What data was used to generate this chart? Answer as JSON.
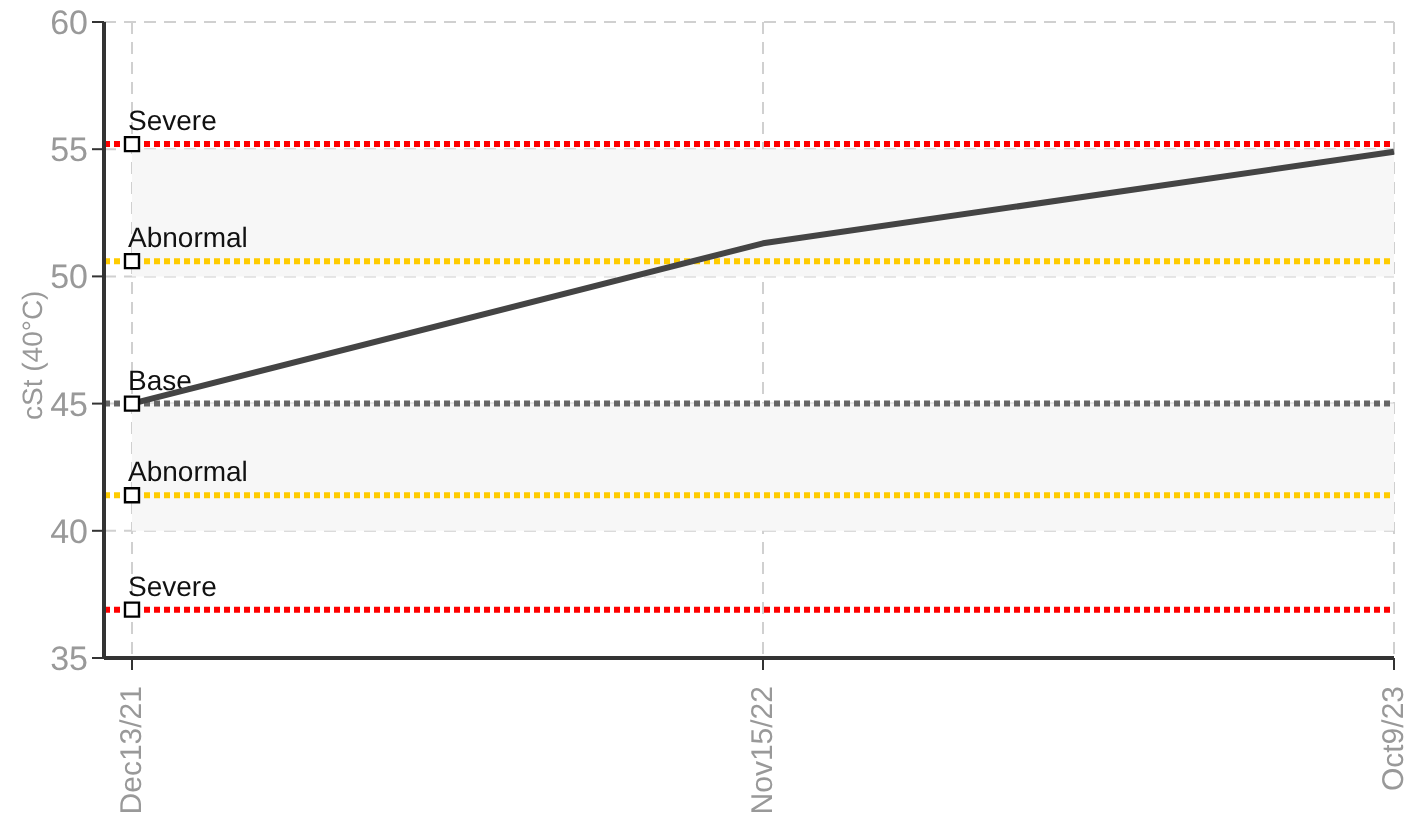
{
  "chart_data": {
    "type": "line",
    "ylabel": "cSt (40°C)",
    "categories": [
      "Dec13/21",
      "Nov15/22",
      "Oct9/23"
    ],
    "series": [
      {
        "color": "#444444",
        "values": [
          45.0,
          51.3,
          54.9
        ]
      },
      {
        "type": "scatter",
        "marker": "square",
        "color": "#000000",
        "x": [
          "Dec13/21",
          "Dec13/21",
          "Dec13/21",
          "Dec13/21",
          "Dec13/21"
        ],
        "values": [
          55.2,
          50.6,
          45.0,
          41.4,
          36.9
        ]
      }
    ],
    "ylim": [
      35,
      60
    ],
    "yticks": [
      35,
      40,
      45,
      50,
      55,
      60
    ],
    "grid": true,
    "marker": "none",
    "line_style": "solid",
    "ref_lines": [
      {
        "axis": "y",
        "value": 55.2,
        "label": "Severe",
        "color": "#ff0000",
        "line_style": "dotted"
      },
      {
        "axis": "y",
        "value": 50.6,
        "label": "Abnormal",
        "color": "#ffcc00",
        "line_style": "dotted"
      },
      {
        "axis": "y",
        "value": 45.0,
        "label": "Base",
        "color": "#666666",
        "line_style": "dotted"
      },
      {
        "axis": "y",
        "value": 41.4,
        "label": "Abnormal",
        "color": "#ffcc00",
        "line_style": "dotted"
      },
      {
        "axis": "y",
        "value": 36.9,
        "label": "Severe",
        "color": "#ff0000",
        "line_style": "dotted"
      }
    ],
    "bands": [
      {
        "axis": "y",
        "from": 50,
        "to": 55,
        "color": "#f7f7f7"
      },
      {
        "axis": "y",
        "from": 40,
        "to": 45,
        "color": "#f7f7f7"
      }
    ]
  }
}
